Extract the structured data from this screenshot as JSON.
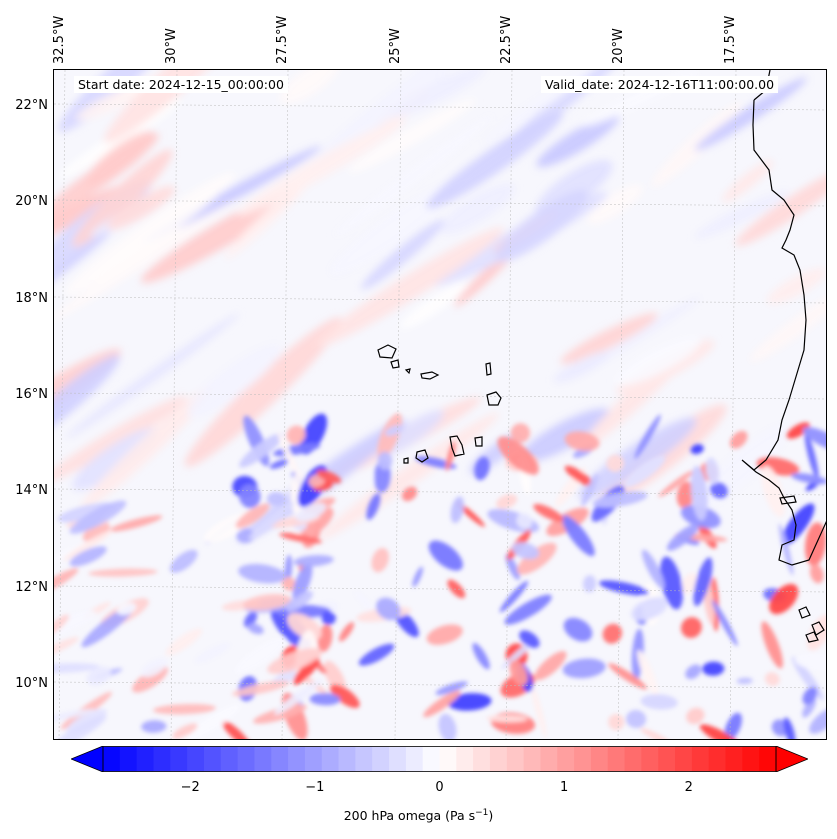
{
  "map": {
    "start_date": "Start date: 2024-12-15_00:00:00",
    "valid_date": "Valid_date: 2024-12-16T11:00:00.00",
    "lon_labels": [
      "32.5°W",
      "30°W",
      "27.5°W",
      "25°W",
      "22.5°W",
      "20°W",
      "17.5°W"
    ],
    "lat_labels": [
      "22°N",
      "20°N",
      "18°N",
      "16°N",
      "14°N",
      "12°N",
      "10°N"
    ],
    "field": "200 hPa omega",
    "gridlines": true
  },
  "colorbar": {
    "label_text": "200 hPa omega (Pa s",
    "label_unit_sup": "−1",
    "label_close": ")",
    "ticks": [
      "−2",
      "−1",
      "0",
      "1",
      "2"
    ],
    "range": [
      -2.7,
      2.7
    ],
    "low_color": "#0000ff",
    "mid_color": "#ffffff",
    "high_color": "#ff0000",
    "extend": "both"
  }
}
